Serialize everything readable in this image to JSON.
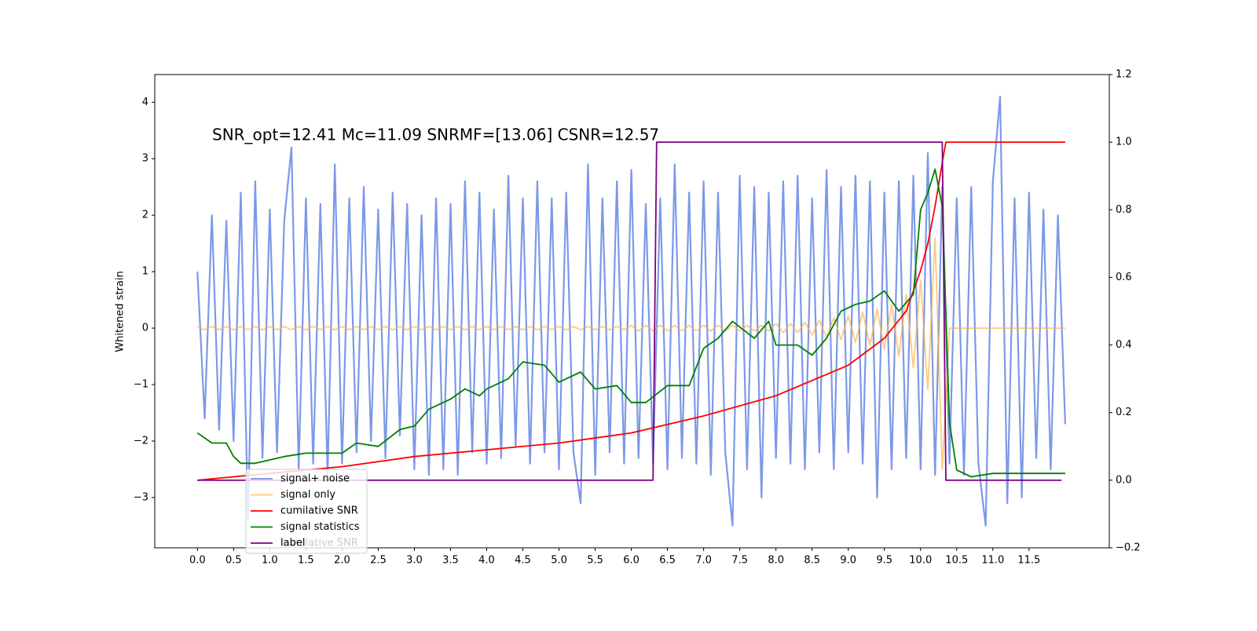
{
  "chart_data": {
    "type": "line",
    "annotation": "SNR_opt=12.41 Mc=11.09 SNRMF=[13.06] CSNR=12.57",
    "ylabel": "Whitened strain",
    "xlim": [
      -0.59,
      12.61
    ],
    "ylim": [
      -3.89,
      4.49
    ],
    "y2lim": [
      -0.2,
      1.2
    ],
    "xticks": [
      {
        "value": 0,
        "label": "0.0"
      },
      0.5,
      {
        "value": 1,
        "label": "1.0"
      },
      1.5,
      {
        "value": 2,
        "label": "2.0"
      },
      2.5,
      {
        "value": 3,
        "label": "3.0"
      },
      3.5,
      {
        "value": 4,
        "label": "4.0"
      },
      4.5,
      {
        "value": 5,
        "label": "5.0"
      },
      5.5,
      {
        "value": 6,
        "label": "6.0"
      },
      6.5,
      {
        "value": 7,
        "label": "7.0"
      },
      7.5,
      {
        "value": 8,
        "label": "8.0"
      },
      8.5,
      {
        "value": 9,
        "label": "9.0"
      },
      9.5,
      {
        "value": 10,
        "label": "10.0"
      },
      10.5,
      {
        "value": 11,
        "label": "11.0"
      },
      11.5
    ],
    "yticks": [
      {
        "value": -3,
        "label": "−3"
      },
      {
        "value": -2,
        "label": "−2"
      },
      {
        "value": -1,
        "label": "−1"
      },
      0,
      1,
      2,
      3,
      4
    ],
    "y2ticks": [
      {
        "value": -0.2,
        "label": "−0.2"
      },
      {
        "value": 0,
        "label": "0.0"
      },
      0.2,
      0.4,
      0.6,
      0.8,
      {
        "value": 1,
        "label": "1.0"
      },
      1.2
    ],
    "legend_corner": "lower left",
    "legend_ghost": "cumilative SNR",
    "x": [
      0,
      0.1,
      0.2,
      0.3,
      0.4,
      0.5,
      0.6,
      0.7,
      0.8,
      0.9,
      1,
      1.1,
      1.2,
      1.3,
      1.4,
      1.5,
      1.6,
      1.7,
      1.8,
      1.9,
      2,
      2.1,
      2.2,
      2.3,
      2.4,
      2.5,
      2.6,
      2.7,
      2.8,
      2.9,
      3,
      3.1,
      3.2,
      3.3,
      3.4,
      3.5,
      3.6,
      3.7,
      3.8,
      3.9,
      4,
      4.1,
      4.2,
      4.3,
      4.4,
      4.5,
      4.6,
      4.7,
      4.8,
      4.9,
      5,
      5.1,
      5.2,
      5.3,
      5.4,
      5.5,
      5.6,
      5.7,
      5.8,
      5.9,
      6,
      6.1,
      6.2,
      6.3,
      6.4,
      6.5,
      6.6,
      6.7,
      6.8,
      6.9,
      7,
      7.1,
      7.2,
      7.3,
      7.4,
      7.5,
      7.6,
      7.7,
      7.8,
      7.9,
      8,
      8.1,
      8.2,
      8.3,
      8.4,
      8.5,
      8.6,
      8.7,
      8.8,
      8.9,
      9,
      9.1,
      9.2,
      9.3,
      9.4,
      9.5,
      9.6,
      9.7,
      9.8,
      9.9,
      10,
      10.1,
      10.2,
      10.3,
      10.4,
      10.5,
      10.6,
      10.7,
      10.8,
      10.9,
      11,
      11.1,
      11.2,
      11.3,
      11.4,
      11.5,
      11.6,
      11.7,
      11.8,
      11.9,
      12
    ],
    "series": [
      {
        "name": "signal+ noise",
        "color": "#7593e6",
        "values": [
          1.0,
          -1.6,
          2.0,
          -1.8,
          1.9,
          -2.0,
          2.4,
          -3.4,
          2.6,
          -2.3,
          2.1,
          -2.2,
          1.9,
          3.2,
          -2.5,
          2.3,
          -2.4,
          2.2,
          -2.6,
          2.9,
          -2.4,
          2.3,
          -2.2,
          2.5,
          -2.0,
          2.1,
          -2.3,
          2.4,
          -1.9,
          2.2,
          -2.5,
          2.0,
          -2.6,
          2.3,
          -2.5,
          2.2,
          -2.6,
          2.6,
          -2.2,
          2.4,
          -2.4,
          2.1,
          -2.3,
          2.7,
          -2.1,
          2.3,
          -2.4,
          2.6,
          -2.2,
          2.3,
          -2.5,
          2.4,
          -2.2,
          -3.1,
          2.9,
          -2.6,
          2.3,
          -2.2,
          2.6,
          -2.4,
          2.8,
          -2.3,
          2.2,
          -2.4,
          2.3,
          -2.5,
          2.9,
          -2.3,
          2.4,
          -2.4,
          2.6,
          -2.6,
          2.4,
          -2.2,
          -3.5,
          2.7,
          -2.5,
          2.5,
          -3.0,
          2.4,
          -2.3,
          2.6,
          -2.4,
          2.7,
          -2.5,
          2.3,
          -2.2,
          2.8,
          -2.5,
          2.5,
          -2.2,
          2.7,
          -2.4,
          2.6,
          -3.0,
          2.4,
          -2.5,
          2.6,
          -2.3,
          2.7,
          -2.5,
          3.1,
          -2.6,
          2.5,
          -2.4,
          2.3,
          -2.6,
          2.5,
          -2.4,
          -3.5,
          2.6,
          4.1,
          -3.1,
          2.3,
          -3.0,
          2.4,
          -2.3,
          2.1,
          -2.5,
          2.0,
          -1.7
        ]
      },
      {
        "name": "signal only",
        "color": "#ffb347",
        "values": [
          0.03,
          -0.03,
          0.03,
          -0.03,
          0.03,
          -0.03,
          0.03,
          -0.03,
          0.03,
          -0.03,
          0.03,
          -0.03,
          0.03,
          -0.03,
          0.03,
          -0.03,
          0.03,
          -0.03,
          0.03,
          -0.03,
          0.03,
          -0.03,
          0.03,
          -0.03,
          0.03,
          -0.03,
          0.03,
          -0.03,
          0.03,
          -0.03,
          0.03,
          -0.03,
          0.03,
          -0.03,
          0.03,
          -0.03,
          0.03,
          -0.03,
          0.03,
          -0.03,
          0.03,
          -0.03,
          0.03,
          -0.03,
          0.03,
          -0.03,
          0.03,
          -0.03,
          0.03,
          -0.03,
          0.03,
          -0.03,
          0.03,
          -0.03,
          0.03,
          -0.03,
          0.03,
          -0.03,
          0.03,
          -0.03,
          0.05,
          -0.05,
          0.05,
          -0.05,
          0.05,
          -0.05,
          0.05,
          -0.05,
          0.05,
          -0.05,
          0.05,
          -0.05,
          0.05,
          -0.05,
          0.05,
          -0.05,
          0.05,
          -0.05,
          0.05,
          -0.05,
          0.08,
          -0.08,
          0.08,
          -0.08,
          0.1,
          -0.12,
          0.14,
          -0.16,
          0.18,
          -0.2,
          0.22,
          -0.25,
          0.28,
          -0.3,
          0.34,
          -0.38,
          0.42,
          -0.5,
          0.6,
          -0.7,
          0.85,
          -1.1,
          1.6,
          -2.5,
          0,
          0,
          0,
          0,
          0,
          0,
          0,
          0,
          0,
          0,
          0,
          0,
          0,
          0,
          0,
          0,
          0
        ]
      },
      {
        "name": "cumilative SNR",
        "color": "#ff0000",
        "axis": "y2",
        "x": [
          0,
          1,
          2,
          3,
          4,
          5,
          6,
          7,
          8,
          9,
          9.5,
          9.8,
          10,
          10.1,
          10.2,
          10.3,
          10.35,
          11,
          12
        ],
        "values": [
          0,
          0.02,
          0.04,
          0.07,
          0.09,
          0.11,
          0.14,
          0.19,
          0.25,
          0.34,
          0.42,
          0.5,
          0.62,
          0.7,
          0.81,
          0.94,
          1.0,
          1.0,
          1.0
        ]
      },
      {
        "name": "signal statistics",
        "color": "#008000",
        "axis": "y2",
        "x": [
          0,
          0.2,
          0.4,
          0.5,
          0.6,
          0.8,
          1,
          1.2,
          1.5,
          1.8,
          2,
          2.2,
          2.5,
          2.8,
          3,
          3.2,
          3.5,
          3.7,
          3.9,
          4,
          4.3,
          4.5,
          4.8,
          5,
          5.3,
          5.5,
          5.8,
          6,
          6.2,
          6.5,
          6.8,
          7,
          7.2,
          7.4,
          7.7,
          7.9,
          8,
          8.3,
          8.5,
          8.7,
          8.9,
          9.1,
          9.3,
          9.5,
          9.7,
          9.9,
          10,
          10.1,
          10.2,
          10.3,
          10.4,
          10.5,
          10.7,
          11,
          11.5,
          12
        ],
        "values": [
          0.14,
          0.11,
          0.11,
          0.07,
          0.05,
          0.05,
          0.06,
          0.07,
          0.08,
          0.08,
          0.08,
          0.11,
          0.1,
          0.15,
          0.16,
          0.21,
          0.24,
          0.27,
          0.25,
          0.27,
          0.3,
          0.35,
          0.34,
          0.29,
          0.32,
          0.27,
          0.28,
          0.23,
          0.23,
          0.28,
          0.28,
          0.39,
          0.42,
          0.47,
          0.42,
          0.47,
          0.4,
          0.4,
          0.37,
          0.42,
          0.5,
          0.52,
          0.53,
          0.56,
          0.5,
          0.55,
          0.8,
          0.85,
          0.92,
          0.81,
          0.17,
          0.03,
          0.01,
          0.02,
          0.02,
          0.02
        ]
      },
      {
        "name": "label",
        "color": "#800080",
        "axis": "y2",
        "x": [
          0,
          6.3,
          6.35,
          10.3,
          10.35,
          11.95
        ],
        "values": [
          0,
          0,
          1,
          1,
          0,
          0
        ]
      }
    ]
  }
}
